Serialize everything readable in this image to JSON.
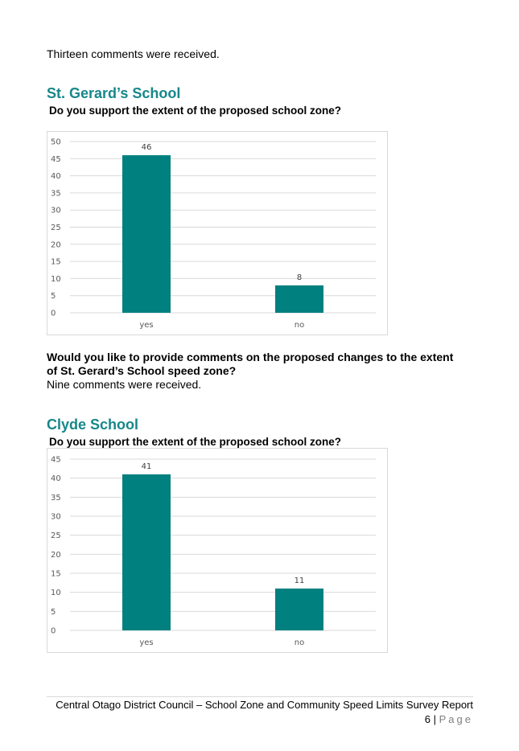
{
  "intro": {
    "text": "Thirteen comments were received."
  },
  "section1": {
    "heading": "St. Gerard’s School",
    "question": "Do you support the extent of the proposed school zone?",
    "comments_question": "Would you like to provide comments on the proposed changes to the extent of St. Gerard’s School speed zone?",
    "comments_result": "Nine comments were received."
  },
  "section2": {
    "heading": "Clyde School",
    "question": "Do you support the extent of the proposed school zone?"
  },
  "colors": {
    "heading": "#17878a",
    "bar": "#00807f",
    "grid": "#d9d9d9"
  },
  "chart_data": [
    {
      "type": "bar",
      "categories": [
        "yes",
        "no"
      ],
      "values": [
        46,
        8
      ],
      "ylim": [
        0,
        50
      ],
      "ytick_step": 5,
      "yticks": [
        "0",
        "5",
        "10",
        "15",
        "20",
        "25",
        "30",
        "35",
        "40",
        "45",
        "50"
      ],
      "data_labels": [
        "46",
        "8"
      ],
      "grid": true
    },
    {
      "type": "bar",
      "categories": [
        "yes",
        "no"
      ],
      "values": [
        41,
        11
      ],
      "ylim": [
        0,
        45
      ],
      "ytick_step": 5,
      "yticks": [
        "0",
        "5",
        "10",
        "15",
        "20",
        "25",
        "30",
        "35",
        "40",
        "45"
      ],
      "data_labels": [
        "41",
        "11"
      ],
      "grid": true
    }
  ],
  "footer": {
    "text": "Central Otago District Council – School Zone and Community Speed Limits Survey Report",
    "page_number": "6",
    "separator": "|",
    "page_word": "Page"
  }
}
